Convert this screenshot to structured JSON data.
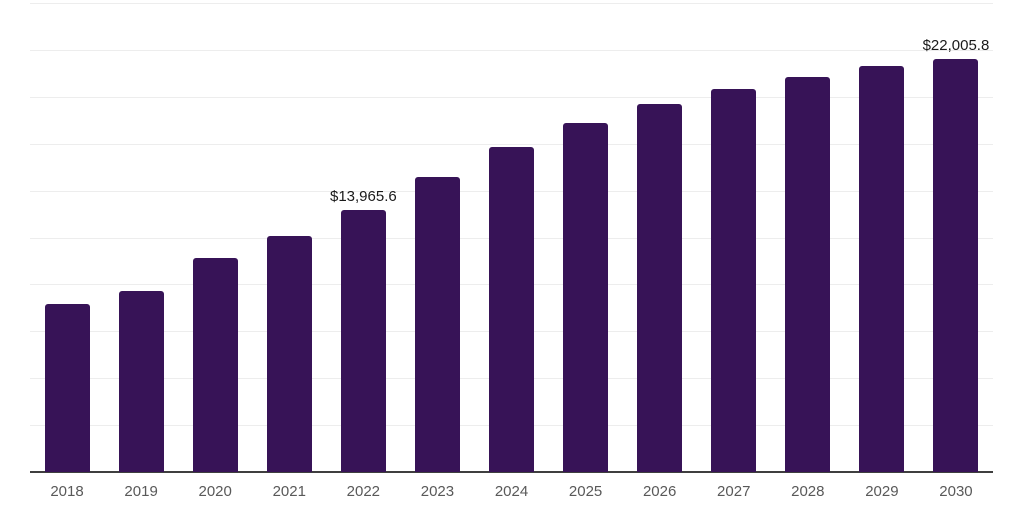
{
  "chart_data": {
    "type": "bar",
    "title": "",
    "xlabel": "",
    "ylabel": "",
    "categories": [
      "2018",
      "2019",
      "2020",
      "2021",
      "2022",
      "2023",
      "2024",
      "2025",
      "2026",
      "2027",
      "2028",
      "2029",
      "2030"
    ],
    "values": [
      8950,
      9640,
      11390,
      12580,
      13965.6,
      15730,
      17320,
      18590,
      19600,
      20390,
      21080,
      21660,
      22005.8
    ],
    "value_labels": {
      "2022": "$13,965.6",
      "2030": "$22,005.8"
    },
    "ylim": [
      0,
      25000
    ],
    "gridline_step": 2500,
    "grid": true,
    "y_tick_labels_visible": false,
    "legend": "none",
    "colors": {
      "bar": "#371357",
      "gridline": "#ededed",
      "axis_line": "#3f3f3f",
      "x_tick_label": "#595959",
      "value_label": "#1a1a1a",
      "background": "#ffffff"
    }
  }
}
